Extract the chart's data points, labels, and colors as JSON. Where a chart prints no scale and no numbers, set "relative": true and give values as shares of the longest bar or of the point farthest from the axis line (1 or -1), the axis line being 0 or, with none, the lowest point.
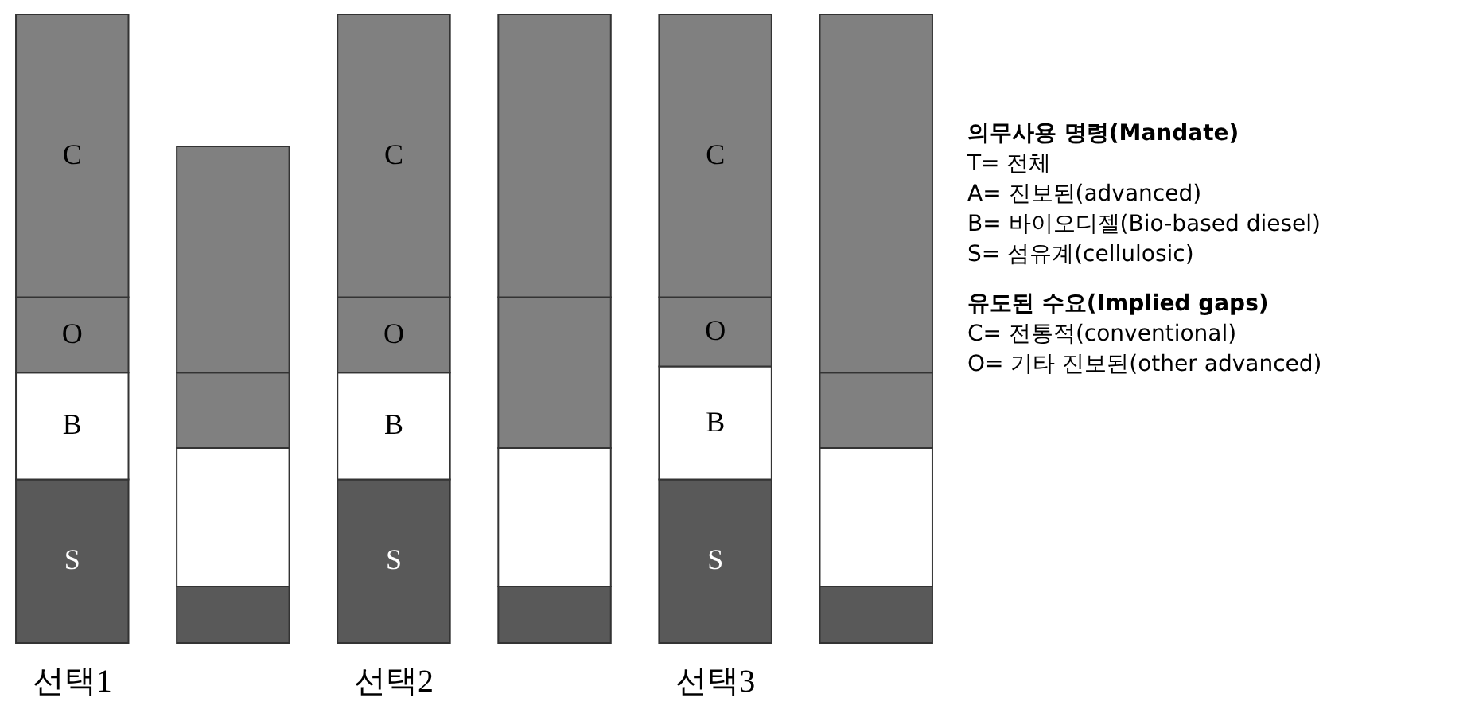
{
  "chart_data": {
    "type": "bar",
    "stacked": true,
    "relative": true,
    "categories": [
      "선택1",
      null,
      "선택2",
      null,
      "선택3",
      null
    ],
    "series": [
      {
        "name": "S",
        "color": "#595959",
        "values": [
          0.26,
          0.09,
          0.26,
          0.09,
          0.26,
          0.09
        ]
      },
      {
        "name": "B",
        "color": "#ffffff",
        "values": [
          0.17,
          0.22,
          0.17,
          0.22,
          0.18,
          0.22
        ]
      },
      {
        "name": "O",
        "color": "#808080",
        "values": [
          0.12,
          0.12,
          0.12,
          0.24,
          0.11,
          0.12
        ]
      },
      {
        "name": "C",
        "color": "#808080",
        "values": [
          0.45,
          0.36,
          0.45,
          0.45,
          0.45,
          0.57
        ]
      }
    ],
    "annotations": [
      "의무사용 명령(Mandate)",
      "T= 전체",
      "A= 진보된(advanced)",
      "B= 바이오디젤(Bio-based diesel)",
      "S= 섬유계(cellulosic)",
      "유도된 수요(Implied gaps)",
      "C= 전통적(conventional)",
      "O= 기타 진보된(other advanced)"
    ]
  }
}
